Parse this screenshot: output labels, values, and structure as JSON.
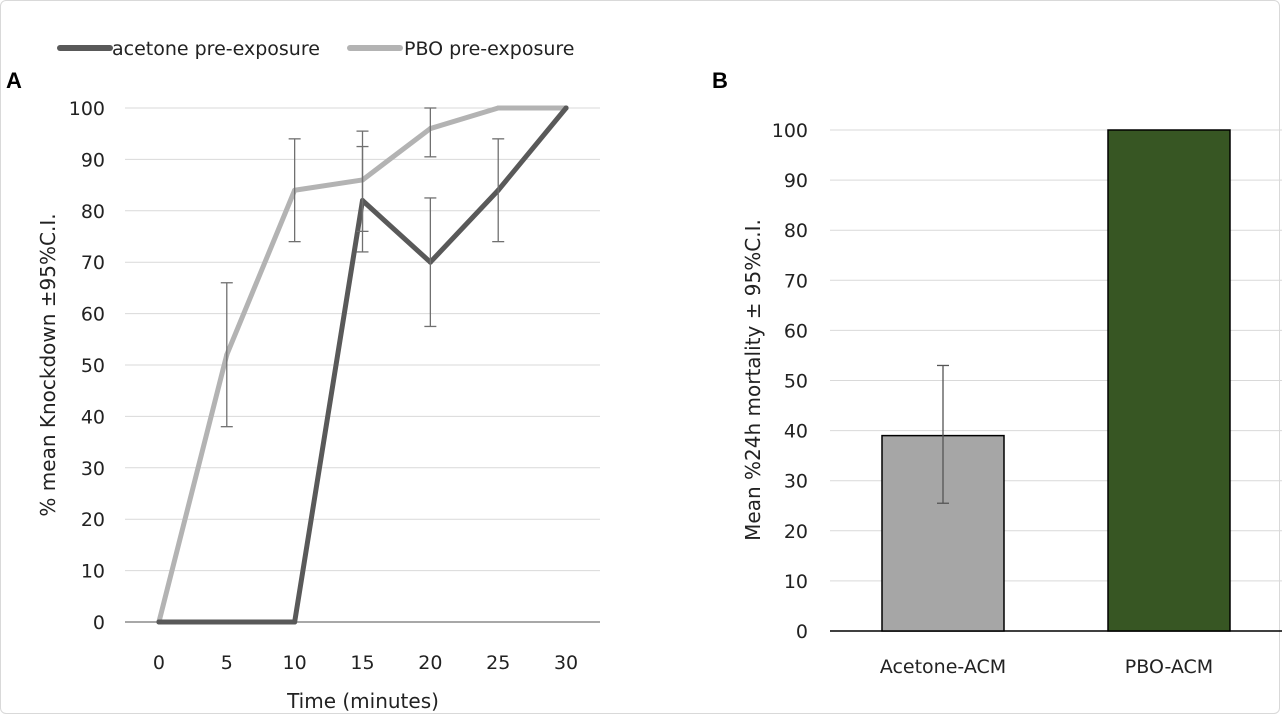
{
  "chart_data": [
    {
      "panel": "A",
      "type": "line",
      "xlabel": "Time (minutes)",
      "ylabel": "% mean  Knockdown ±95%C.I.",
      "x": [
        0,
        5,
        10,
        15,
        20,
        25,
        30
      ],
      "xlim": [
        -2.5,
        32.5
      ],
      "ylim": [
        0,
        100
      ],
      "yticks": [
        0,
        10,
        20,
        30,
        40,
        50,
        60,
        70,
        80,
        90,
        100
      ],
      "grid": "horizontal",
      "legend_position": "top",
      "series": [
        {
          "name": "acetone pre-exposure",
          "color": "#595959",
          "values": [
            0,
            0,
            0,
            82,
            70,
            84,
            100
          ],
          "ci_low": [
            null,
            null,
            null,
            72,
            57.5,
            74,
            null
          ],
          "ci_high": [
            null,
            null,
            null,
            92.5,
            82.5,
            94,
            null
          ]
        },
        {
          "name": "PBO pre-exposure",
          "color": "#b3b3b3",
          "values": [
            0,
            52,
            84,
            86,
            96,
            100,
            100
          ],
          "ci_low": [
            null,
            38,
            74,
            76,
            90.5,
            null,
            null
          ],
          "ci_high": [
            null,
            66,
            94,
            95.5,
            100,
            null,
            null
          ]
        }
      ]
    },
    {
      "panel": "B",
      "type": "bar",
      "xlabel": "",
      "ylabel": "Mean %24h mortality ± 95%C.I.",
      "categories": [
        "Acetone-ACM",
        "PBO-ACM"
      ],
      "values": [
        39,
        100
      ],
      "ci_low": [
        25.5,
        null
      ],
      "ci_high": [
        53,
        null
      ],
      "colors": [
        "#a6a6a6",
        "#375623"
      ],
      "ylim": [
        0,
        100
      ],
      "yticks": [
        0,
        10,
        20,
        30,
        40,
        50,
        60,
        70,
        80,
        90,
        100
      ],
      "grid": "horizontal"
    }
  ]
}
